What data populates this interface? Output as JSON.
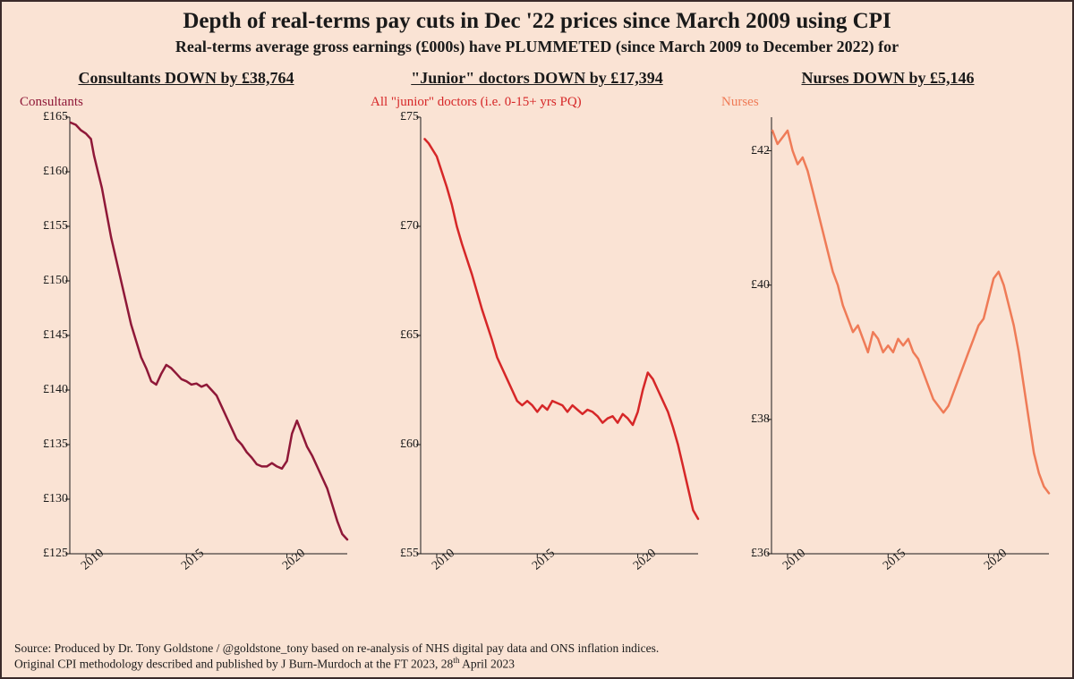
{
  "layout": {
    "background_color": "#fae3d4",
    "frame_border_color": "#3a2a2a",
    "title_fontsize": 25,
    "subtitle_fontsize": 18,
    "panel_title_fontsize": 18,
    "series_label_fontsize": 15,
    "tick_fontsize": 14,
    "footer_fontsize": 13.5,
    "line_width": 2.5
  },
  "title": "Depth of real-terms pay cuts in Dec '22 prices since March 2009 using CPI",
  "subtitle": "Real-terms average gross earnings (£000s) have PLUMMETED (since March 2009 to December 2022) for",
  "x_axis": {
    "min": 2009.2,
    "max": 2023,
    "ticks": [
      2010,
      2015,
      2020
    ],
    "tick_labels": [
      "2010",
      "2015",
      "2020"
    ]
  },
  "panels": [
    {
      "id": "consultants",
      "panel_title": "Consultants DOWN by £38,764",
      "series_label": "Consultants",
      "line_color": "#8f1838",
      "series_label_color": "#8f1838",
      "y_axis": {
        "min": 125,
        "max": 165,
        "ticks": [
          125,
          130,
          135,
          140,
          145,
          150,
          155,
          160,
          165
        ],
        "prefix": "£"
      },
      "data": [
        [
          2009.25,
          164.5
        ],
        [
          2009.5,
          164.3
        ],
        [
          2009.75,
          163.8
        ],
        [
          2010,
          163.5
        ],
        [
          2010.25,
          163.0
        ],
        [
          2010.4,
          161.5
        ],
        [
          2010.6,
          160.0
        ],
        [
          2010.8,
          158.5
        ],
        [
          2011,
          156.5
        ],
        [
          2011.25,
          154.0
        ],
        [
          2011.5,
          152.0
        ],
        [
          2011.75,
          150.0
        ],
        [
          2012,
          148.0
        ],
        [
          2012.25,
          146.0
        ],
        [
          2012.5,
          144.5
        ],
        [
          2012.75,
          143.0
        ],
        [
          2013,
          142.0
        ],
        [
          2013.25,
          140.8
        ],
        [
          2013.5,
          140.5
        ],
        [
          2013.75,
          141.5
        ],
        [
          2014,
          142.3
        ],
        [
          2014.25,
          142.0
        ],
        [
          2014.5,
          141.5
        ],
        [
          2014.75,
          141.0
        ],
        [
          2015,
          140.8
        ],
        [
          2015.25,
          140.5
        ],
        [
          2015.5,
          140.6
        ],
        [
          2015.75,
          140.3
        ],
        [
          2016,
          140.5
        ],
        [
          2016.25,
          140.0
        ],
        [
          2016.5,
          139.5
        ],
        [
          2016.75,
          138.5
        ],
        [
          2017,
          137.5
        ],
        [
          2017.25,
          136.5
        ],
        [
          2017.5,
          135.5
        ],
        [
          2017.75,
          135.0
        ],
        [
          2018,
          134.3
        ],
        [
          2018.25,
          133.8
        ],
        [
          2018.5,
          133.2
        ],
        [
          2018.75,
          133.0
        ],
        [
          2019,
          133.0
        ],
        [
          2019.25,
          133.3
        ],
        [
          2019.5,
          133.0
        ],
        [
          2019.75,
          132.8
        ],
        [
          2020,
          133.5
        ],
        [
          2020.25,
          136.0
        ],
        [
          2020.5,
          137.2
        ],
        [
          2020.75,
          136.0
        ],
        [
          2021,
          134.8
        ],
        [
          2021.25,
          134.0
        ],
        [
          2021.5,
          133.0
        ],
        [
          2021.75,
          132.0
        ],
        [
          2022,
          131.0
        ],
        [
          2022.25,
          129.5
        ],
        [
          2022.5,
          128.0
        ],
        [
          2022.75,
          126.8
        ],
        [
          2023,
          126.3
        ]
      ]
    },
    {
      "id": "juniors",
      "panel_title": "\"Junior\" doctors DOWN by  £17,394",
      "series_label": "All \"junior\" doctors (i.e. 0-15+ yrs PQ)",
      "line_color": "#d62728",
      "series_label_color": "#d62728",
      "y_axis": {
        "min": 55,
        "max": 75,
        "ticks": [
          55,
          60,
          65,
          70,
          75
        ],
        "prefix": "£"
      },
      "data": [
        [
          2009.4,
          74.0
        ],
        [
          2009.6,
          73.8
        ],
        [
          2009.8,
          73.5
        ],
        [
          2010,
          73.2
        ],
        [
          2010.25,
          72.5
        ],
        [
          2010.5,
          71.8
        ],
        [
          2010.75,
          71.0
        ],
        [
          2011,
          70.0
        ],
        [
          2011.25,
          69.2
        ],
        [
          2011.5,
          68.5
        ],
        [
          2011.75,
          67.8
        ],
        [
          2012,
          67.0
        ],
        [
          2012.25,
          66.2
        ],
        [
          2012.5,
          65.5
        ],
        [
          2012.75,
          64.8
        ],
        [
          2013,
          64.0
        ],
        [
          2013.25,
          63.5
        ],
        [
          2013.5,
          63.0
        ],
        [
          2013.75,
          62.5
        ],
        [
          2014,
          62.0
        ],
        [
          2014.25,
          61.8
        ],
        [
          2014.5,
          62.0
        ],
        [
          2014.75,
          61.8
        ],
        [
          2015,
          61.5
        ],
        [
          2015.25,
          61.8
        ],
        [
          2015.5,
          61.6
        ],
        [
          2015.75,
          62.0
        ],
        [
          2016,
          61.9
        ],
        [
          2016.25,
          61.8
        ],
        [
          2016.5,
          61.5
        ],
        [
          2016.75,
          61.8
        ],
        [
          2017,
          61.6
        ],
        [
          2017.25,
          61.4
        ],
        [
          2017.5,
          61.6
        ],
        [
          2017.75,
          61.5
        ],
        [
          2018,
          61.3
        ],
        [
          2018.25,
          61.0
        ],
        [
          2018.5,
          61.2
        ],
        [
          2018.75,
          61.3
        ],
        [
          2019,
          61.0
        ],
        [
          2019.25,
          61.4
        ],
        [
          2019.5,
          61.2
        ],
        [
          2019.75,
          60.9
        ],
        [
          2020,
          61.5
        ],
        [
          2020.25,
          62.5
        ],
        [
          2020.5,
          63.3
        ],
        [
          2020.75,
          63.0
        ],
        [
          2021,
          62.5
        ],
        [
          2021.25,
          62.0
        ],
        [
          2021.5,
          61.5
        ],
        [
          2021.75,
          60.8
        ],
        [
          2022,
          60.0
        ],
        [
          2022.25,
          59.0
        ],
        [
          2022.5,
          58.0
        ],
        [
          2022.75,
          57.0
        ],
        [
          2023,
          56.6
        ]
      ]
    },
    {
      "id": "nurses",
      "panel_title": "Nurses DOWN by £5,146",
      "series_label": "Nurses",
      "line_color": "#ef7b57",
      "series_label_color": "#ef7b57",
      "y_axis": {
        "min": 36,
        "max": 42.5,
        "ticks": [
          36,
          38,
          40,
          42
        ],
        "prefix": "£"
      },
      "data": [
        [
          2009.25,
          42.3
        ],
        [
          2009.5,
          42.1
        ],
        [
          2009.75,
          42.2
        ],
        [
          2010,
          42.3
        ],
        [
          2010.25,
          42.0
        ],
        [
          2010.5,
          41.8
        ],
        [
          2010.75,
          41.9
        ],
        [
          2011,
          41.7
        ],
        [
          2011.25,
          41.4
        ],
        [
          2011.5,
          41.1
        ],
        [
          2011.75,
          40.8
        ],
        [
          2012,
          40.5
        ],
        [
          2012.25,
          40.2
        ],
        [
          2012.5,
          40.0
        ],
        [
          2012.75,
          39.7
        ],
        [
          2013,
          39.5
        ],
        [
          2013.25,
          39.3
        ],
        [
          2013.5,
          39.4
        ],
        [
          2013.75,
          39.2
        ],
        [
          2014,
          39.0
        ],
        [
          2014.25,
          39.3
        ],
        [
          2014.5,
          39.2
        ],
        [
          2014.75,
          39.0
        ],
        [
          2015,
          39.1
        ],
        [
          2015.25,
          39.0
        ],
        [
          2015.5,
          39.2
        ],
        [
          2015.75,
          39.1
        ],
        [
          2016,
          39.2
        ],
        [
          2016.25,
          39.0
        ],
        [
          2016.5,
          38.9
        ],
        [
          2016.75,
          38.7
        ],
        [
          2017,
          38.5
        ],
        [
          2017.25,
          38.3
        ],
        [
          2017.5,
          38.2
        ],
        [
          2017.75,
          38.1
        ],
        [
          2018,
          38.2
        ],
        [
          2018.25,
          38.4
        ],
        [
          2018.5,
          38.6
        ],
        [
          2018.75,
          38.8
        ],
        [
          2019,
          39.0
        ],
        [
          2019.25,
          39.2
        ],
        [
          2019.5,
          39.4
        ],
        [
          2019.75,
          39.5
        ],
        [
          2020,
          39.8
        ],
        [
          2020.25,
          40.1
        ],
        [
          2020.5,
          40.2
        ],
        [
          2020.75,
          40.0
        ],
        [
          2021,
          39.7
        ],
        [
          2021.25,
          39.4
        ],
        [
          2021.5,
          39.0
        ],
        [
          2021.75,
          38.5
        ],
        [
          2022,
          38.0
        ],
        [
          2022.25,
          37.5
        ],
        [
          2022.5,
          37.2
        ],
        [
          2022.75,
          37.0
        ],
        [
          2023,
          36.9
        ]
      ]
    }
  ],
  "footer_line1": "Source: Produced by Dr. Tony Goldstone / @goldstone_tony based on re-analysis of NHS digital pay data and ONS inflation indices.",
  "footer_line2_pre": "Original CPI methodology described and published by J Burn-Murdoch at the FT 2023, 28",
  "footer_line2_sup": "th",
  "footer_line2_post": " April 2023"
}
